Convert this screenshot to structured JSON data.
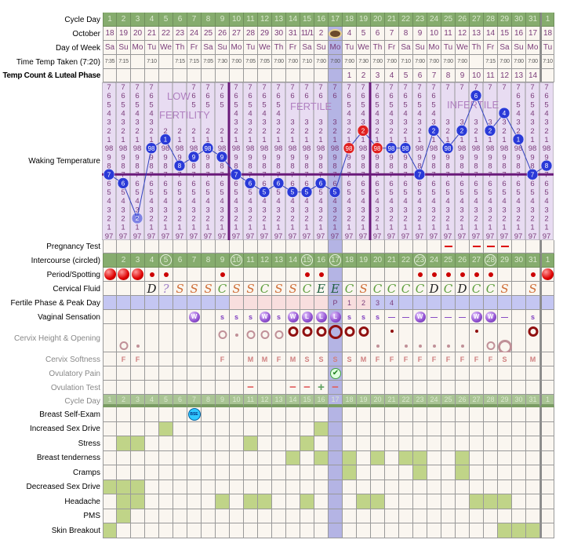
{
  "colors": {
    "header_green": "#86ac6e",
    "cell_bg": "#faf6f0",
    "highlight_col": "#b4b4e4",
    "temp_bg": "#e8dcf2",
    "coverline": "#6a1a7a",
    "temp_dot": "#2a3ad8",
    "temp_dot_highlight": "#e02020",
    "symptom_fill": "#c0d488",
    "fertile_blue": "#c4c6f2",
    "fertile_pink": "#f8dede"
  },
  "highlight_day": 17,
  "rows": [
    {
      "label": "Cycle Day",
      "kind": "green",
      "cells": [
        "1",
        "2",
        "3",
        "4",
        "5",
        "6",
        "7",
        "8",
        "9",
        "10",
        "11",
        "12",
        "13",
        "14",
        "15",
        "16",
        "17",
        "18",
        "19",
        "20",
        "21",
        "22",
        "23",
        "24",
        "25",
        "26",
        "27",
        "28",
        "29",
        "30",
        "31",
        "1"
      ]
    },
    {
      "label": "October",
      "kind": "text",
      "cells": [
        "18",
        "19",
        "20",
        "21",
        "22",
        "23",
        "24",
        "25",
        "26",
        "27",
        "28",
        "29",
        "30",
        "31",
        "11/1",
        "2",
        "",
        "4",
        "5",
        "6",
        "7",
        "8",
        "9",
        "10",
        "11",
        "12",
        "13",
        "14",
        "15",
        "16",
        "17",
        "18"
      ],
      "icon_day": 17,
      "icon": "cake-icon"
    },
    {
      "label": "Day of Week",
      "kind": "text",
      "cells": [
        "Sa",
        "Su",
        "Mo",
        "Tu",
        "We",
        "Th",
        "Fr",
        "Sa",
        "Su",
        "Mo",
        "Tu",
        "We",
        "Th",
        "Fr",
        "Sa",
        "Su",
        "Mo",
        "Tu",
        "We",
        "Th",
        "Fr",
        "Sa",
        "Su",
        "Mo",
        "Tu",
        "We",
        "Th",
        "Fr",
        "Sa",
        "Su",
        "Mo",
        "Tu"
      ]
    },
    {
      "label": "Time Temp Taken (7:20)",
      "kind": "time",
      "cells": [
        "7:35",
        "7:15",
        "",
        "7:10",
        "",
        "7:15",
        "7:15",
        "7:05",
        "7:30",
        "7:00",
        "7:05",
        "7:05",
        "7:00",
        "7:00",
        "7:10",
        "7:00",
        "7:00",
        "7:00",
        "7:30",
        "7:00",
        "7:00",
        "7:10",
        "7:00",
        "7:00",
        "7:00",
        "7:00",
        "",
        "7:15",
        "7:00",
        "7:00",
        "7:00",
        "7:10"
      ]
    },
    {
      "label": "Temp Count & Luteal Phase",
      "kind": "text",
      "bold": true,
      "cells": [
        "",
        "",
        "",
        "",
        "",
        "",
        "",
        "",
        "",
        "",
        "",
        "",
        "",
        "",
        "",
        "",
        "",
        "1",
        "2",
        "3",
        "4",
        "5",
        "6",
        "7",
        "8",
        "9",
        "10",
        "11",
        "12",
        "13",
        "14",
        ""
      ]
    },
    {
      "label": "Pregnancy Test",
      "kind": "preg",
      "cells": [
        "",
        "",
        "",
        "",
        "",
        "",
        "",
        "",
        "",
        "",
        "",
        "",
        "",
        "",
        "",
        "",
        "",
        "",
        "",
        "",
        "",
        "",
        "",
        "",
        "-",
        "",
        "-",
        "-",
        "-",
        "",
        "",
        ""
      ]
    },
    {
      "label": "Intercourse (circled)",
      "kind": "intercourse",
      "circled": [
        5,
        10,
        15,
        17,
        23,
        28
      ],
      "cells": [
        "",
        "2",
        "3",
        "4",
        "5",
        "6",
        "7",
        "8",
        "9",
        "10",
        "11",
        "12",
        "13",
        "14",
        "15",
        "16",
        "17",
        "18",
        "19",
        "20",
        "21",
        "22",
        "23",
        "24",
        "25",
        "26",
        "27",
        "28",
        "29",
        "30",
        "31",
        "1"
      ]
    },
    {
      "label": "Period/Spotting",
      "kind": "period",
      "cells": [
        "H",
        "H",
        "H",
        "s",
        "s",
        "",
        "",
        "",
        "s",
        "",
        "",
        "",
        "",
        "",
        "s",
        "s",
        "",
        "",
        "",
        "",
        "",
        "",
        "s",
        "s",
        "s",
        "s",
        "s",
        "s",
        "",
        "",
        "s",
        "H"
      ]
    },
    {
      "label": "Cervical Fluid",
      "kind": "cf",
      "cells": [
        "",
        "",
        "",
        "D",
        "?",
        "S",
        "S",
        "S",
        "C",
        "S",
        "S",
        "C",
        "S",
        "S",
        "C",
        "E",
        "E",
        "C",
        "S",
        "C",
        "C",
        "C",
        "C",
        "D",
        "C",
        "D",
        "C",
        "C",
        "S",
        "",
        "S",
        ""
      ]
    },
    {
      "label": "Fertile Phase & Peak Day",
      "kind": "fertile",
      "phase": [
        "b",
        "b",
        "b",
        "b",
        "b",
        "b",
        "b",
        "b",
        "b",
        "p",
        "p",
        "p",
        "p",
        "p",
        "p",
        "p",
        "p",
        "p",
        "p",
        "b",
        "b",
        "b",
        "b",
        "b",
        "b",
        "b",
        "b",
        "b",
        "b",
        "b",
        "b",
        "b"
      ],
      "cells": [
        "",
        "",
        "",
        "",
        "",
        "",
        "",
        "",
        "",
        "",
        "",
        "",
        "",
        "",
        "",
        "",
        "P",
        "1",
        "2",
        "3",
        "4",
        "",
        "",
        "",
        "",
        "",
        "",
        "",
        "",
        "",
        "",
        ""
      ]
    },
    {
      "label": "Vaginal Sensation",
      "kind": "vs",
      "cells": [
        "",
        "",
        "",
        "",
        "",
        "",
        "W",
        "",
        "s",
        "s",
        "s",
        "W",
        "s",
        "W",
        "L",
        "L",
        "L",
        "s",
        "s",
        "s",
        "—",
        "—",
        "W",
        "—",
        "—",
        "—",
        "W",
        "W",
        "—",
        "",
        "s",
        ""
      ]
    },
    {
      "label": "Cervix Height & Opening",
      "kind": "cervix",
      "gray": true,
      "cells": [
        "",
        "low-open",
        "low-dot",
        "",
        "",
        "",
        "",
        "",
        "mid-open",
        "mid-dot",
        "mid-open",
        "mid-open",
        "mid-open",
        "high-firm",
        "high-firm",
        "high-firm",
        "high-big",
        "high-firm",
        "high-firm",
        "low-dot",
        "high-dot",
        "low-dot",
        "low-dot",
        "low-dot",
        "low-dot",
        "low-dot",
        "high-dot",
        "low-open",
        "low-big",
        "",
        "high-firm",
        ""
      ]
    },
    {
      "label": "Cervix Softness",
      "kind": "soft",
      "gray": true,
      "cells": [
        "",
        "F",
        "F",
        "",
        "",
        "",
        "",
        "",
        "F",
        "",
        "M",
        "M",
        "F",
        "M",
        "S",
        "S",
        "S",
        "S",
        "M",
        "F",
        "F",
        "F",
        "F",
        "F",
        "F",
        "F",
        "F",
        "F",
        "S",
        "",
        "M",
        ""
      ]
    },
    {
      "label": "Ovulatory Pain",
      "kind": "pain",
      "gray": true,
      "cells": [
        "",
        "",
        "",
        "",
        "",
        "",
        "",
        "",
        "",
        "",
        "",
        "",
        "",
        "",
        "",
        "",
        "check",
        "",
        "",
        "",
        "",
        "",
        "",
        "",
        "",
        "",
        "",
        "",
        "",
        "",
        "",
        ""
      ]
    },
    {
      "label": "Ovulation Test",
      "kind": "ovtest",
      "gray": true,
      "cells": [
        "",
        "",
        "",
        "",
        "",
        "",
        "",
        "",
        "",
        "",
        "-",
        "",
        "",
        "-",
        "-",
        "+",
        "-",
        "",
        "",
        "",
        "",
        "",
        "",
        "",
        "",
        "",
        "",
        "",
        "",
        "",
        "",
        ""
      ]
    },
    {
      "label": "Cycle Day",
      "kind": "green2",
      "gray": true,
      "cells": [
        "1",
        "2",
        "3",
        "4",
        "5",
        "6",
        "7",
        "8",
        "9",
        "10",
        "11",
        "12",
        "13",
        "14",
        "15",
        "16",
        "17",
        "18",
        "19",
        "20",
        "21",
        "22",
        "23",
        "24",
        "25",
        "26",
        "27",
        "28",
        "29",
        "30",
        "31",
        "1"
      ]
    },
    {
      "label": "Breast Self-Exam",
      "kind": "bse",
      "bse_day": 7,
      "bse_text": "BSE",
      "cells": []
    },
    {
      "label": "Increased Sex Drive",
      "kind": "symptom",
      "days": [
        5,
        16,
        17
      ]
    },
    {
      "label": "Stress",
      "kind": "symptom",
      "days": [
        2,
        3,
        11,
        15
      ]
    },
    {
      "label": "Breast tenderness",
      "kind": "symptom",
      "days": [
        14,
        16,
        17,
        18,
        20,
        22,
        23,
        26
      ]
    },
    {
      "label": "Cramps",
      "kind": "symptom",
      "days": [
        17,
        18,
        23,
        26
      ]
    },
    {
      "label": "Decreased Sex Drive",
      "kind": "symptom",
      "days": [
        1,
        2,
        3
      ]
    },
    {
      "label": "Headache",
      "kind": "symptom",
      "days": [
        2,
        3,
        9,
        11,
        12,
        15,
        19,
        20,
        27,
        28,
        29
      ]
    },
    {
      "label": "PMS",
      "kind": "symptom",
      "days": [
        2
      ]
    },
    {
      "label": "Skin Breakout",
      "kind": "symptom",
      "days": [
        1,
        29,
        30,
        31
      ]
    }
  ],
  "temperature": {
    "label": "Waking Temperature",
    "scale_labels": [
      "7",
      "6",
      "5",
      "4",
      "3",
      "2",
      "1",
      "98",
      "9",
      "8",
      "7",
      "6",
      "5",
      "4",
      "3",
      "2",
      "1",
      "97"
    ],
    "scale_max": 98.7,
    "scale_min": 97.0,
    "coverline": 97.7,
    "phase_labels": [
      "LOW",
      "FERTILITY",
      "FERTILE",
      "INFERTILE"
    ],
    "values": [
      97.7,
      97.6,
      97.2,
      98.0,
      98.1,
      97.8,
      97.9,
      98.0,
      97.9,
      97.7,
      97.6,
      97.5,
      97.6,
      97.5,
      97.5,
      97.6,
      97.5,
      98.0,
      98.2,
      98.0,
      98.0,
      98.0,
      97.7,
      98.2,
      98.0,
      98.2,
      98.6,
      98.2,
      98.4,
      98.1,
      97.7,
      97.8
    ],
    "highlighted_days": [
      18,
      19,
      20
    ],
    "faded_days": [
      3
    ],
    "separator_after_days": [
      9,
      19
    ]
  }
}
